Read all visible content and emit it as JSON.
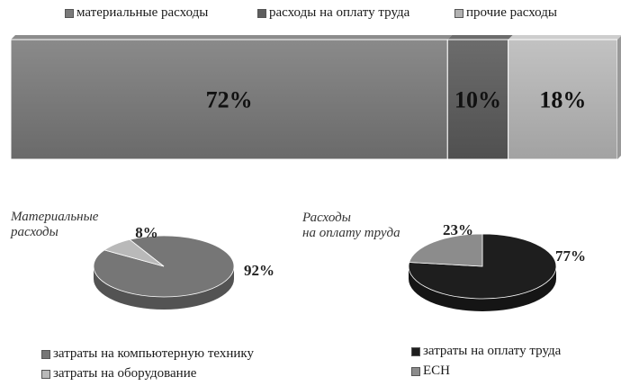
{
  "chart_data": [
    {
      "type": "bar",
      "orientation": "horizontal-stacked-100",
      "series": [
        {
          "name": "материальные расходы",
          "values": [
            72
          ],
          "label": "72%",
          "color": "#7a7a7a"
        },
        {
          "name": "расходы на оплату труда",
          "values": [
            10
          ],
          "label": "10%",
          "color": "#5e5e5e"
        },
        {
          "name": "прочие расходы",
          "values": [
            18
          ],
          "label": "18%",
          "color": "#b2b2b2"
        }
      ],
      "legend": "top"
    },
    {
      "type": "pie",
      "title": "Материальные расходы",
      "title_lines": [
        "Материальные",
        "расходы"
      ],
      "slices": [
        {
          "name": "затраты на компьютерную технику",
          "value": 92,
          "label": "92%",
          "color": "#767676"
        },
        {
          "name": "затраты на оборудование",
          "value": 8,
          "label": "8%",
          "color": "#b9b9b9"
        }
      ],
      "legend": "bottom"
    },
    {
      "type": "pie",
      "title": "Расходы на оплату труда",
      "title_lines": [
        "Расходы",
        "на оплату труда"
      ],
      "slices": [
        {
          "name": "затраты на оплату труда",
          "value": 77,
          "label": "77%",
          "color": "#1e1e1e"
        },
        {
          "name": "ЕСН",
          "value": 23,
          "label": "23%",
          "color": "#8c8c8c"
        }
      ],
      "legend": "bottom"
    }
  ]
}
